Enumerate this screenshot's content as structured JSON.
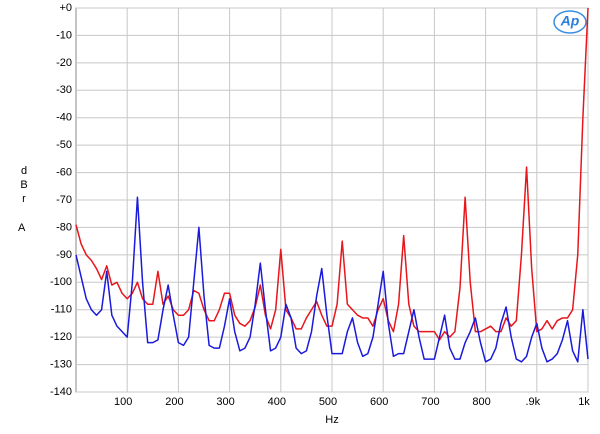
{
  "chart_data": {
    "type": "line",
    "logo": "Ap",
    "ylabel": "dBr",
    "ylabel_unit": "A",
    "xlabel": "Hz",
    "xlim": [
      0,
      1000
    ],
    "ylim": [
      -140,
      0
    ],
    "xticks": [
      100,
      200,
      300,
      400,
      500,
      600,
      700,
      800,
      {
        "value": 900,
        "label": ".9k"
      },
      {
        "value": 1000,
        "label": "1k"
      }
    ],
    "yticks": [
      {
        "value": 0,
        "label": "+0"
      },
      -10,
      -20,
      -30,
      -40,
      -50,
      -60,
      -70,
      -80,
      -90,
      -100,
      -110,
      -120,
      -130,
      -140
    ],
    "grid": true,
    "x": [
      0,
      10,
      20,
      30,
      40,
      50,
      60,
      70,
      80,
      90,
      100,
      110,
      120,
      130,
      140,
      150,
      160,
      170,
      180,
      190,
      200,
      210,
      220,
      230,
      240,
      250,
      260,
      270,
      280,
      290,
      300,
      310,
      320,
      330,
      340,
      350,
      360,
      370,
      380,
      390,
      400,
      410,
      420,
      430,
      440,
      450,
      460,
      470,
      480,
      490,
      500,
      510,
      520,
      530,
      540,
      550,
      560,
      570,
      580,
      590,
      600,
      610,
      620,
      630,
      640,
      650,
      660,
      670,
      680,
      690,
      700,
      710,
      720,
      730,
      740,
      750,
      760,
      770,
      780,
      790,
      800,
      810,
      820,
      830,
      840,
      850,
      860,
      870,
      880,
      890,
      900,
      910,
      920,
      930,
      940,
      950,
      960,
      970,
      980,
      990,
      1000
    ],
    "series": [
      {
        "color": "#e8161b",
        "values": [
          -79,
          -86,
          -90,
          -92,
          -95,
          -99,
          -94,
          -101,
          -100,
          -104,
          -106,
          -104,
          -100,
          -106,
          -108,
          -108,
          -96,
          -108,
          -105,
          -110,
          -112,
          -112,
          -110,
          -103,
          -104,
          -110,
          -114,
          -114,
          -110,
          -104,
          -104,
          -112,
          -115,
          -116,
          -114,
          -109,
          -101,
          -112,
          -117,
          -110,
          -88,
          -110,
          -113,
          -117,
          -117,
          -113,
          -110,
          -107,
          -112,
          -116,
          -116,
          -108,
          -85,
          -108,
          -110,
          -112,
          -113,
          -113,
          -116,
          -110,
          -106,
          -114,
          -118,
          -108,
          -83,
          -108,
          -116,
          -118,
          -118,
          -118,
          -118,
          -121,
          -118,
          -120,
          -118,
          -102,
          -69,
          -100,
          -118,
          -118,
          -117,
          -116,
          -118,
          -118,
          -113,
          -116,
          -114,
          -90,
          -58,
          -95,
          -118,
          -117,
          -114,
          -117,
          -114,
          -113,
          -113,
          -110,
          -90,
          -40,
          0
        ]
      },
      {
        "color": "#1a1adc",
        "values": [
          -90,
          -98,
          -106,
          -110,
          -112,
          -110,
          -96,
          -112,
          -116,
          -118,
          -120,
          -100,
          -69,
          -100,
          -122,
          -122,
          -121,
          -110,
          -101,
          -112,
          -122,
          -123,
          -120,
          -100,
          -80,
          -105,
          -123,
          -124,
          -124,
          -116,
          -106,
          -118,
          -125,
          -124,
          -120,
          -108,
          -93,
          -110,
          -125,
          -124,
          -120,
          -108,
          -113,
          -124,
          -126,
          -125,
          -118,
          -105,
          -95,
          -112,
          -126,
          -126,
          -126,
          -118,
          -113,
          -122,
          -127,
          -126,
          -120,
          -108,
          -96,
          -115,
          -127,
          -126,
          -126,
          -118,
          -110,
          -120,
          -128,
          -128,
          -128,
          -120,
          -112,
          -124,
          -128,
          -128,
          -122,
          -118,
          -113,
          -122,
          -129,
          -128,
          -124,
          -115,
          -109,
          -120,
          -128,
          -129,
          -127,
          -120,
          -115,
          -124,
          -129,
          -128,
          -126,
          -121,
          -114,
          -125,
          -129,
          -110,
          -128
        ]
      }
    ]
  }
}
